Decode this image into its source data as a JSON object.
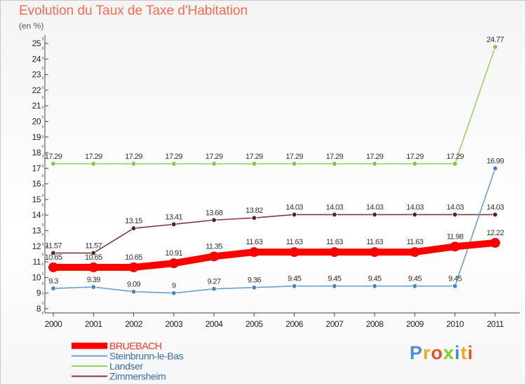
{
  "title": "Evolution du Taux de Taxe d'Habitation",
  "unit_label": "(en %)",
  "brand": {
    "text": "Proxiti",
    "colors": [
      "#4a90d9",
      "#f5a623",
      "#e2552b",
      "#7ed321",
      "#4a90d9",
      "#f5a623",
      "#e2552b"
    ]
  },
  "chart_data": {
    "type": "line",
    "title": "Evolution du Taux de Taxe d'Habitation",
    "ylabel": "(en %)",
    "xlabel": "",
    "categories": [
      "2000",
      "2001",
      "2002",
      "2003",
      "2004",
      "2005",
      "2006",
      "2007",
      "2008",
      "2009",
      "2010",
      "2011"
    ],
    "ylim": [
      8,
      25
    ],
    "yticks": [
      8,
      9,
      10,
      11,
      12,
      13,
      14,
      15,
      16,
      17,
      18,
      19,
      20,
      21,
      22,
      23,
      24,
      25
    ],
    "legend_position": "bottom-left",
    "series": [
      {
        "name": "Landser",
        "color": "#96d35f",
        "marker": "#7cc94a",
        "thick": false,
        "values": [
          17.29,
          17.29,
          17.29,
          17.29,
          17.29,
          17.29,
          17.29,
          17.29,
          17.29,
          17.29,
          17.29,
          24.77
        ],
        "labels": [
          "17.29",
          "17.29",
          "17.29",
          "17.29",
          "17.29",
          "17.29",
          "17.29",
          "17.29",
          "17.29",
          "17.29",
          "17.29",
          "24.77"
        ]
      },
      {
        "name": "Zimmersheim",
        "color": "#7a3a3a",
        "marker": "#5e1f1f",
        "thick": false,
        "values": [
          11.57,
          11.57,
          13.15,
          13.41,
          13.68,
          13.82,
          14.03,
          14.03,
          14.03,
          14.03,
          14.03,
          14.03
        ],
        "labels": [
          "11.57",
          "11.57",
          "13.15",
          "13.41",
          "13.68",
          "13.82",
          "14.03",
          "14.03",
          "14.03",
          "14.03",
          "14.03",
          "14.03"
        ]
      },
      {
        "name": "Steinbrunn-le-Bas",
        "color": "#6a9fd0",
        "marker": "#3f86c9",
        "thick": false,
        "values": [
          9.3,
          9.39,
          9.09,
          9.0,
          9.27,
          9.36,
          9.45,
          9.45,
          9.45,
          9.45,
          9.45,
          16.99
        ],
        "labels": [
          "9.3",
          "9.39",
          "9.09",
          "9",
          "9.27",
          "9.36",
          "9.45",
          "9.45",
          "9.45",
          "9.45",
          "9.45",
          "16.99"
        ]
      },
      {
        "name": "BRUEBACH",
        "color": "#ff0000",
        "marker": "#ff0000",
        "thick": true,
        "values": [
          10.65,
          10.65,
          10.65,
          10.91,
          11.35,
          11.63,
          11.63,
          11.63,
          11.63,
          11.63,
          11.98,
          12.22
        ],
        "labels": [
          "10.65",
          "10.65",
          "10.65",
          "10.91",
          "11.35",
          "11.63",
          "11.63",
          "11.63",
          "11.63",
          "11.63",
          "11.98",
          "12.22"
        ]
      }
    ],
    "legend": [
      "BRUEBACH",
      "Steinbrunn-le-Bas",
      "Landser",
      "Zimmersheim"
    ]
  }
}
